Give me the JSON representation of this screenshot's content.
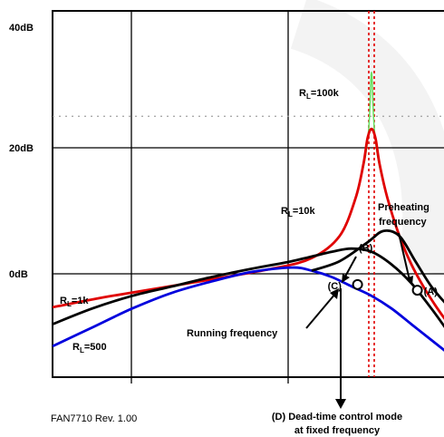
{
  "footer": {
    "revision": "FAN7710 Rev. 1.00"
  },
  "chart_data": {
    "type": "line",
    "title": "",
    "xlabel": "",
    "ylabel": "",
    "y_unit": "dB",
    "ylim": [
      -20,
      40
    ],
    "y_ticks": [
      {
        "value": 0,
        "label": "0dB"
      },
      {
        "value": 20,
        "label": "20dB"
      },
      {
        "value": 40,
        "label": "40dB"
      }
    ],
    "x_domain": [
      0,
      1
    ],
    "grid": true,
    "reference_line": {
      "y": 25,
      "style": "dotted"
    },
    "resonance_marker": {
      "x": 0.8,
      "style": "dotted",
      "color": "#e00000"
    },
    "series": [
      {
        "name": "R_L=100k",
        "label_main": "R",
        "label_sub": "L",
        "label_rest": "=100k",
        "color": "#66e060",
        "points": [
          [
            0.76,
            12
          ],
          [
            0.78,
            17
          ],
          [
            0.79,
            21
          ],
          [
            0.795,
            25
          ],
          [
            0.8,
            32
          ],
          [
            0.805,
            25
          ],
          [
            0.81,
            21
          ],
          [
            0.82,
            17
          ],
          [
            0.84,
            12
          ]
        ]
      },
      {
        "name": "R_L=10k",
        "label_main": "R",
        "label_sub": "L",
        "label_rest": "=10k",
        "color": "#e00000",
        "points": [
          [
            0.0,
            -5.3
          ],
          [
            0.15,
            -3.5
          ],
          [
            0.35,
            -1.4
          ],
          [
            0.55,
            0.8
          ],
          [
            0.65,
            2.5
          ],
          [
            0.72,
            6
          ],
          [
            0.76,
            12
          ],
          [
            0.78,
            17.5
          ],
          [
            0.79,
            21.5
          ],
          [
            0.8,
            23
          ],
          [
            0.81,
            21.5
          ],
          [
            0.82,
            17.5
          ],
          [
            0.84,
            12
          ],
          [
            0.87,
            6
          ],
          [
            0.9,
            1.5
          ],
          [
            0.93,
            -2
          ],
          [
            0.96,
            -5
          ],
          [
            0.99,
            -7.7
          ]
        ]
      },
      {
        "name": "R_L=1k",
        "label_main": "R",
        "label_sub": "L",
        "label_rest": "=1k",
        "color": "#000000",
        "points": [
          [
            0.0,
            -8
          ],
          [
            0.1,
            -5.5
          ],
          [
            0.2,
            -3.5
          ],
          [
            0.3,
            -2
          ],
          [
            0.4,
            -0.5
          ],
          [
            0.5,
            0.8
          ],
          [
            0.6,
            2
          ],
          [
            0.7,
            3.5
          ],
          [
            0.75,
            4
          ],
          [
            0.8,
            3.5
          ],
          [
            0.85,
            1.5
          ],
          [
            0.9,
            -1.5
          ],
          [
            0.95,
            -5.5
          ],
          [
            0.99,
            -9
          ]
        ]
      },
      {
        "name": "R_L=500",
        "label_main": "R",
        "label_sub": "L",
        "label_rest": "=500",
        "color": "#0000dd",
        "points": [
          [
            0.0,
            -11.5
          ],
          [
            0.1,
            -8.5
          ],
          [
            0.2,
            -5.5
          ],
          [
            0.3,
            -3
          ],
          [
            0.4,
            -1.2
          ],
          [
            0.5,
            0.3
          ],
          [
            0.6,
            1
          ],
          [
            0.65,
            0.5
          ],
          [
            0.7,
            -0.5
          ],
          [
            0.75,
            -2
          ],
          [
            0.8,
            -3.5
          ],
          [
            0.85,
            -5.5
          ],
          [
            0.9,
            -8
          ],
          [
            0.95,
            -10.5
          ],
          [
            0.99,
            -12.5
          ]
        ]
      },
      {
        "name": "Preheating",
        "color": "#000000",
        "points": [
          [
            0.65,
            0.5
          ],
          [
            0.72,
            2
          ],
          [
            0.79,
            5
          ],
          [
            0.83,
            6.8
          ],
          [
            0.87,
            6
          ],
          [
            0.91,
            2
          ],
          [
            0.95,
            -2
          ],
          [
            0.99,
            -5
          ]
        ]
      }
    ],
    "markers": [
      {
        "id": "A",
        "label": "(A)",
        "x": 0.915,
        "y": -2.6
      },
      {
        "id": "C",
        "label": "(C)",
        "x": 0.765,
        "y": -1.7
      }
    ],
    "annotations": {
      "preheating_line1": "Preheating",
      "preheating_line2": "frequency",
      "point_b": "(B)",
      "running": "Running frequency",
      "deadtime_line1": "(D) Dead-time control mode",
      "deadtime_line2": "at fixed frequency"
    }
  }
}
